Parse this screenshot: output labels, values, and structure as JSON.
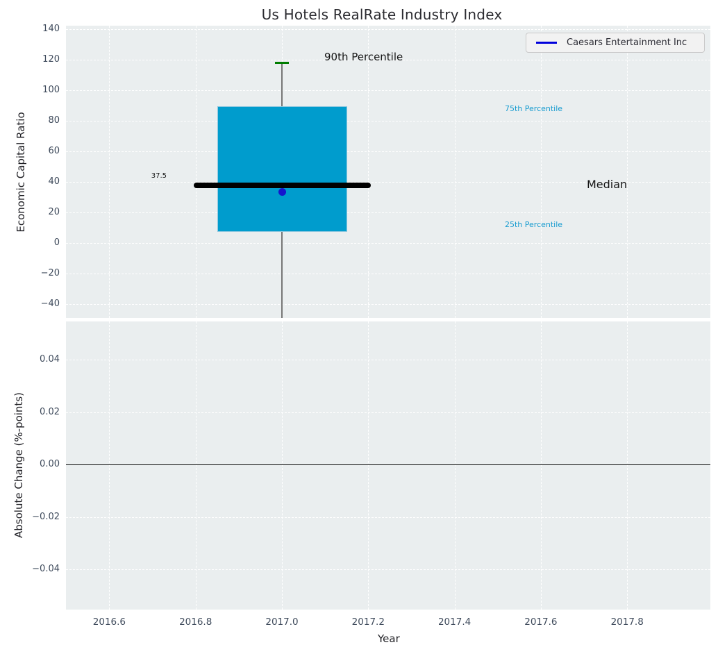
{
  "title": "Us Hotels RealRate Industry Index",
  "legend": {
    "label": "Caesars Entertainment Inc"
  },
  "colors": {
    "plot_background": "#eaeeef",
    "gridline": "#ffffff",
    "box_fill": "#009ccd",
    "median_line": "#000000",
    "whisker": "#767676",
    "p90_cap": "#007d00",
    "company_point": "#1515cd",
    "legend_line": "#0000dc",
    "percentile_text": "#189cd0",
    "tick_text": "#3e4a5b",
    "zero_line": "#000000"
  },
  "chart_data": [
    {
      "type": "boxplot",
      "title": "Us Hotels RealRate Industry Index",
      "ylabel": "Economic Capital Ratio",
      "ylim": [
        -49,
        142
      ],
      "grid": true,
      "legend_position": "upper right",
      "yticks": [
        {
          "v": 140,
          "label": "140"
        },
        {
          "v": 120,
          "label": "120"
        },
        {
          "v": 100,
          "label": "100"
        },
        {
          "v": 80,
          "label": "80"
        },
        {
          "v": 60,
          "label": "60"
        },
        {
          "v": 40,
          "label": "40"
        },
        {
          "v": 20,
          "label": "20"
        },
        {
          "v": 0,
          "label": "0"
        },
        {
          "v": -20,
          "label": "−20"
        },
        {
          "v": -40,
          "label": "−40"
        }
      ],
      "box": {
        "x": 2017.0,
        "p90": 117,
        "q3": 89,
        "median": 37.5,
        "q1": 7,
        "whisker_low_visible": -49,
        "box_halfwidth": 0.15,
        "median_halfwidth": 0.205,
        "cap_halfwidth": 0.016
      },
      "median_value_label": "37.5",
      "series": [
        {
          "name": "Caesars Entertainment Inc",
          "points": [
            {
              "x": 2017.0,
              "y": 33
            }
          ]
        }
      ],
      "annotations": {
        "p90": "90th Percentile",
        "p75": "75th Percentile",
        "median": "Median",
        "p25": "25th Percentile"
      }
    },
    {
      "type": "line",
      "ylabel": "Absolute Change (%-points)",
      "xlabel": "Year",
      "ylim": [
        -0.055,
        0.055
      ],
      "grid": true,
      "zero_line": 0.0,
      "yticks": [
        {
          "v": 0.04,
          "label": "0.04"
        },
        {
          "v": 0.02,
          "label": "0.02"
        },
        {
          "v": 0.0,
          "label": "0.00"
        },
        {
          "v": -0.02,
          "label": "−0.02"
        },
        {
          "v": -0.04,
          "label": "−0.04"
        }
      ],
      "xticks": [
        {
          "v": 2016.6,
          "label": "2016.6"
        },
        {
          "v": 2016.8,
          "label": "2016.8"
        },
        {
          "v": 2017.0,
          "label": "2017.0"
        },
        {
          "v": 2017.2,
          "label": "2017.2"
        },
        {
          "v": 2017.4,
          "label": "2017.4"
        },
        {
          "v": 2017.6,
          "label": "2017.6"
        },
        {
          "v": 2017.8,
          "label": "2017.8"
        }
      ]
    }
  ]
}
